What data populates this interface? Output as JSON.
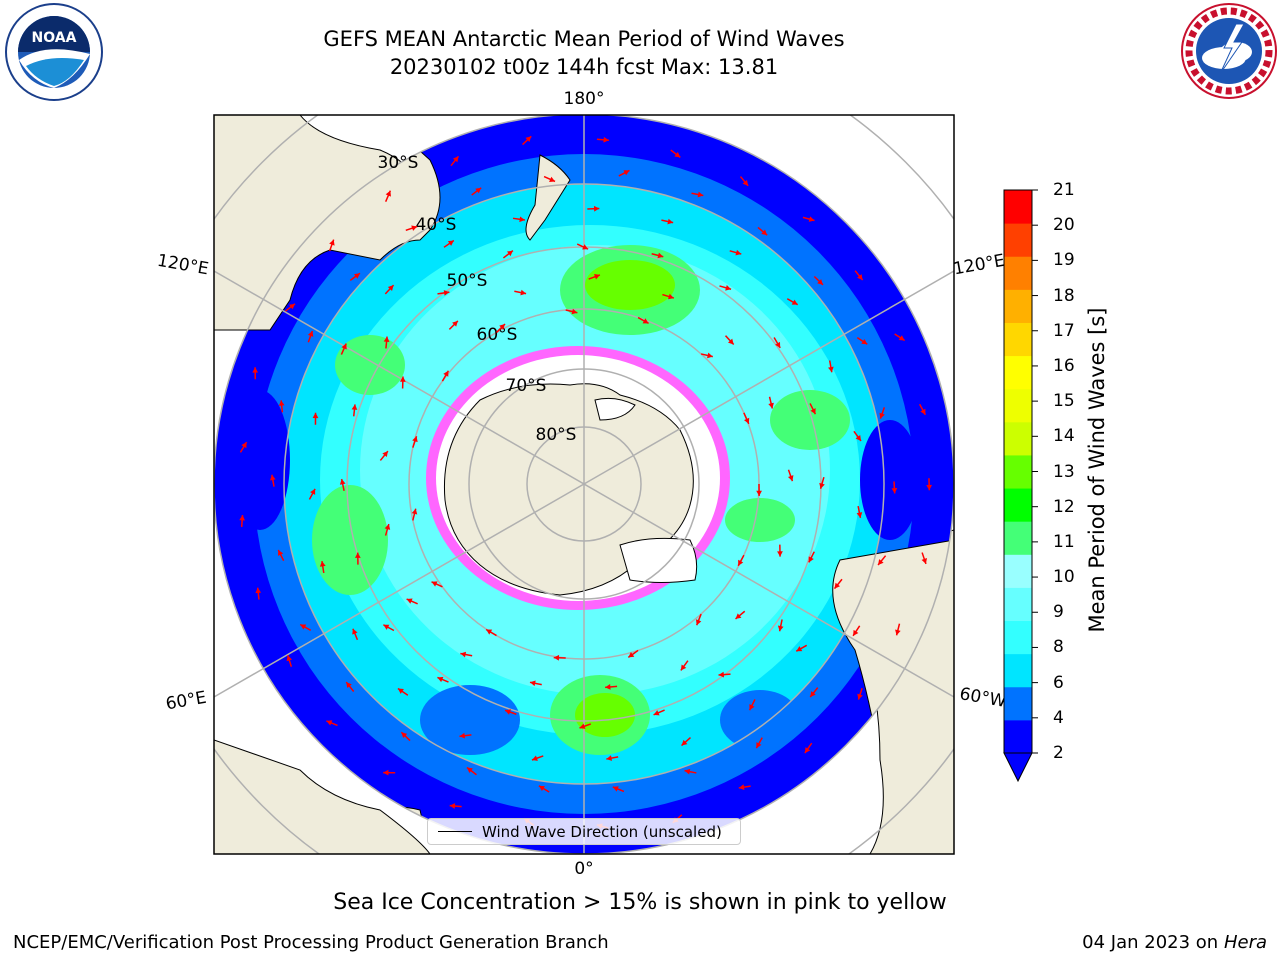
{
  "title": {
    "line1": "GEFS MEAN Antarctic Mean Period of Wind Waves",
    "line2": "20230102 t00z 144h fcst   Max: 13.81"
  },
  "logos": {
    "left": "NOAA",
    "right": "NATIONAL WEATHER SERVICE"
  },
  "map": {
    "projection": "south-polar-stereographic",
    "longitude_labels": [
      "180°",
      "120°E",
      "120°E",
      "60°E",
      "60°W",
      "0°"
    ],
    "latitude_labels": [
      "30°S",
      "40°S",
      "50°S",
      "60°S",
      "70°S",
      "80°S"
    ],
    "legend": "Wind Wave Direction (unscaled)",
    "colors": {
      "land": "#efecdb",
      "ocean_low": "#0000ff",
      "ice": "#ff00ff"
    }
  },
  "colorbar": {
    "label": "Mean Period of Wind Waves [s]",
    "ticks": [
      "21",
      "20",
      "19",
      "18",
      "17",
      "16",
      "15",
      "14",
      "13",
      "12",
      "11",
      "10",
      "9",
      "8",
      "6",
      "4",
      "2"
    ],
    "colors": [
      "#0000ff",
      "#0073ff",
      "#00e5ff",
      "#33ffff",
      "#66ffff",
      "#99ffff",
      "#44ff77",
      "#00ff00",
      "#66ff00",
      "#ccff00",
      "#eeff00",
      "#ffff00",
      "#ffd700",
      "#ffb000",
      "#ff8000",
      "#ff4000",
      "#ff0000"
    ]
  },
  "caption": "Sea Ice Concentration > 15% is shown in pink to yellow",
  "footer": {
    "left": "NCEP/EMC/Verification Post Processing Product Generation Branch",
    "right_prefix": "04 Jan 2023 on ",
    "right_italic": "Hera"
  }
}
